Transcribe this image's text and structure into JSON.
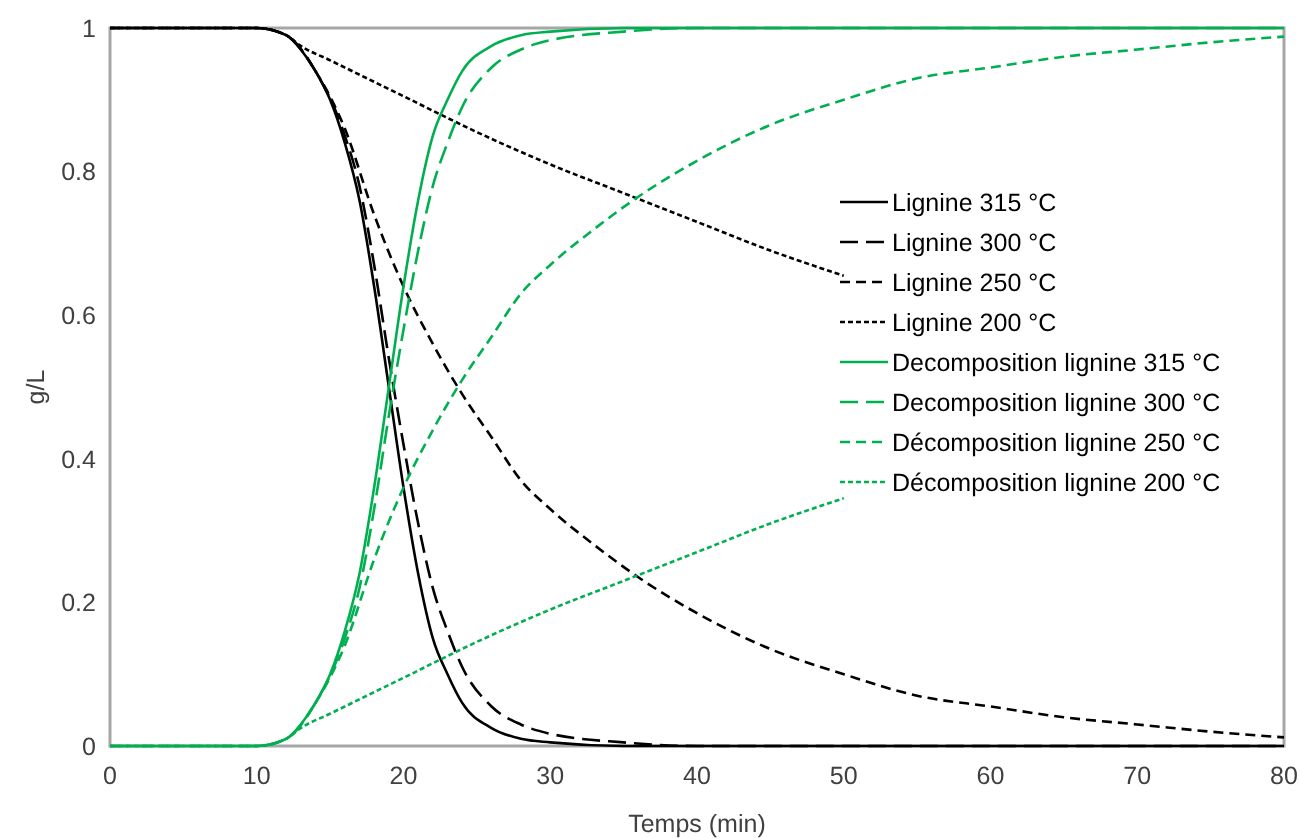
{
  "chart_data": {
    "type": "line",
    "xlabel": "Temps (min)",
    "ylabel": "g/L",
    "xlim": [
      0,
      80
    ],
    "xticks": [
      0,
      10,
      20,
      30,
      40,
      50,
      60,
      70,
      80
    ],
    "ylim": [
      0,
      1
    ],
    "yticks": [
      0,
      0.2,
      0.4,
      0.6,
      0.8,
      1
    ],
    "grid": false,
    "legend": "right",
    "series": [
      {
        "name": "Lignine 315 °C",
        "color": "#000000",
        "line_style": "solid",
        "x": [
          0,
          10,
          12,
          13,
          14,
          15,
          16,
          17,
          18,
          19,
          20,
          21,
          22,
          23,
          24,
          26,
          28,
          30,
          35,
          80
        ],
        "values": [
          1,
          1,
          0.99,
          0.97,
          0.94,
          0.9,
          0.84,
          0.76,
          0.64,
          0.5,
          0.36,
          0.24,
          0.15,
          0.1,
          0.06,
          0.025,
          0.01,
          0.005,
          0,
          0
        ]
      },
      {
        "name": "Lignine 300 °C",
        "color": "#000000",
        "line_style": "longdash",
        "x": [
          0,
          10,
          12,
          14,
          16,
          17,
          18,
          19,
          20,
          21,
          22,
          23,
          24,
          26,
          28,
          30,
          35,
          40,
          80
        ],
        "values": [
          1,
          1,
          0.99,
          0.94,
          0.85,
          0.78,
          0.67,
          0.54,
          0.42,
          0.31,
          0.22,
          0.16,
          0.11,
          0.055,
          0.03,
          0.017,
          0.005,
          0,
          0
        ]
      },
      {
        "name": "Lignine 250 °C",
        "color": "#000000",
        "line_style": "dashed",
        "x": [
          0,
          10,
          12,
          14,
          16,
          18,
          20,
          22,
          24,
          26,
          28,
          30,
          33,
          36,
          40,
          45,
          50,
          55,
          60,
          65,
          70,
          75,
          80
        ],
        "values": [
          1,
          1,
          0.99,
          0.94,
          0.86,
          0.74,
          0.64,
          0.56,
          0.49,
          0.43,
          0.37,
          0.33,
          0.28,
          0.235,
          0.185,
          0.135,
          0.1,
          0.07,
          0.055,
          0.04,
          0.03,
          0.02,
          0.012
        ]
      },
      {
        "name": "Lignine 200 °C",
        "color": "#000000",
        "line_style": "dotted",
        "x": [
          0,
          10,
          12,
          13,
          15,
          20,
          25,
          30,
          35,
          40,
          45,
          50
        ],
        "values": [
          1,
          1,
          0.99,
          0.975,
          0.955,
          0.905,
          0.855,
          0.81,
          0.77,
          0.73,
          0.69,
          0.655
        ]
      },
      {
        "name": "Decomposition lignine 315 °C",
        "color": "#00b050",
        "line_style": "solid",
        "x": [
          0,
          10,
          12,
          13,
          14,
          15,
          16,
          17,
          18,
          19,
          20,
          21,
          22,
          23,
          24,
          26,
          28,
          30,
          35,
          80
        ],
        "values": [
          0,
          0,
          0.01,
          0.03,
          0.06,
          0.1,
          0.16,
          0.24,
          0.36,
          0.5,
          0.64,
          0.76,
          0.85,
          0.9,
          0.94,
          0.975,
          0.99,
          0.995,
          1,
          1
        ]
      },
      {
        "name": "Decomposition lignine 300 °C",
        "color": "#00b050",
        "line_style": "longdash",
        "x": [
          0,
          10,
          12,
          14,
          16,
          17,
          18,
          19,
          20,
          21,
          22,
          23,
          24,
          26,
          28,
          30,
          35,
          40,
          80
        ],
        "values": [
          0,
          0,
          0.01,
          0.06,
          0.15,
          0.22,
          0.33,
          0.46,
          0.58,
          0.69,
          0.78,
          0.84,
          0.89,
          0.945,
          0.97,
          0.983,
          0.995,
          1,
          1
        ]
      },
      {
        "name": "Décomposition lignine 250 °C",
        "color": "#00b050",
        "line_style": "dashed",
        "x": [
          0,
          10,
          12,
          14,
          16,
          18,
          20,
          22,
          24,
          26,
          28,
          30,
          33,
          36,
          40,
          45,
          50,
          55,
          60,
          65,
          70,
          75,
          80
        ],
        "values": [
          0,
          0,
          0.01,
          0.06,
          0.14,
          0.26,
          0.36,
          0.44,
          0.51,
          0.57,
          0.63,
          0.67,
          0.72,
          0.765,
          0.815,
          0.865,
          0.9,
          0.93,
          0.945,
          0.96,
          0.97,
          0.98,
          0.988
        ]
      },
      {
        "name": "Décomposition lignine 200 °C",
        "color": "#00b050",
        "line_style": "dotted",
        "x": [
          0,
          10,
          12,
          13,
          15,
          20,
          25,
          30,
          35,
          40,
          45,
          50
        ],
        "values": [
          0,
          0,
          0.01,
          0.025,
          0.045,
          0.095,
          0.145,
          0.19,
          0.23,
          0.27,
          0.31,
          0.345
        ]
      }
    ]
  }
}
